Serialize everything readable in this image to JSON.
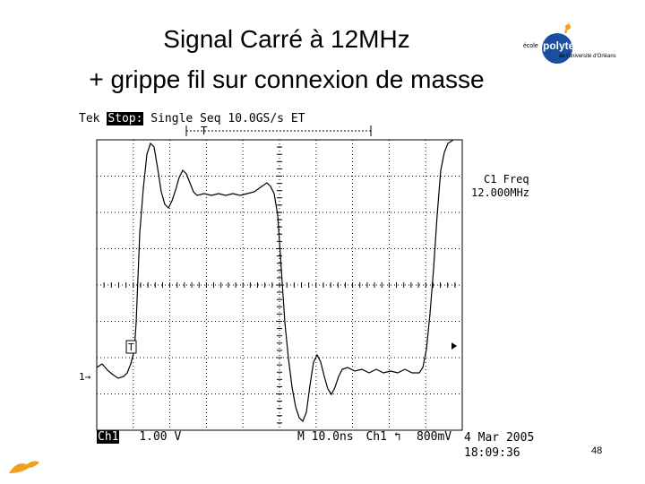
{
  "title": {
    "line1": "Signal Carré à 12MHz",
    "line2": "+ grippe fil sur connexion de masse"
  },
  "logo": {
    "prefix": "école",
    "name": "polytechnique",
    "sub": "de l'université d'Orléans"
  },
  "scope": {
    "brand": "Tek",
    "state": "Stop:",
    "mode": "Single Seq",
    "rate": "10.0GS/s ET",
    "meas_label": "C1 Freq",
    "meas_value": "12.000MHz",
    "ch_label": "Ch1",
    "ch_scale": "1.00 V",
    "timebase": "M 10.0ns",
    "trig_src": "Ch1",
    "trig_slope_icon": "rising-edge-icon",
    "trig_level": "800mV",
    "date": "4 Mar 2005",
    "time": "18:09:36",
    "trigger_marker": "T",
    "ground_marker": "1→"
  },
  "page_number": "48",
  "colors": {
    "trace": "#000000",
    "grid": "#000000",
    "logo_accent": "#f0a020",
    "logo_blue": "#1a4fa0"
  }
}
